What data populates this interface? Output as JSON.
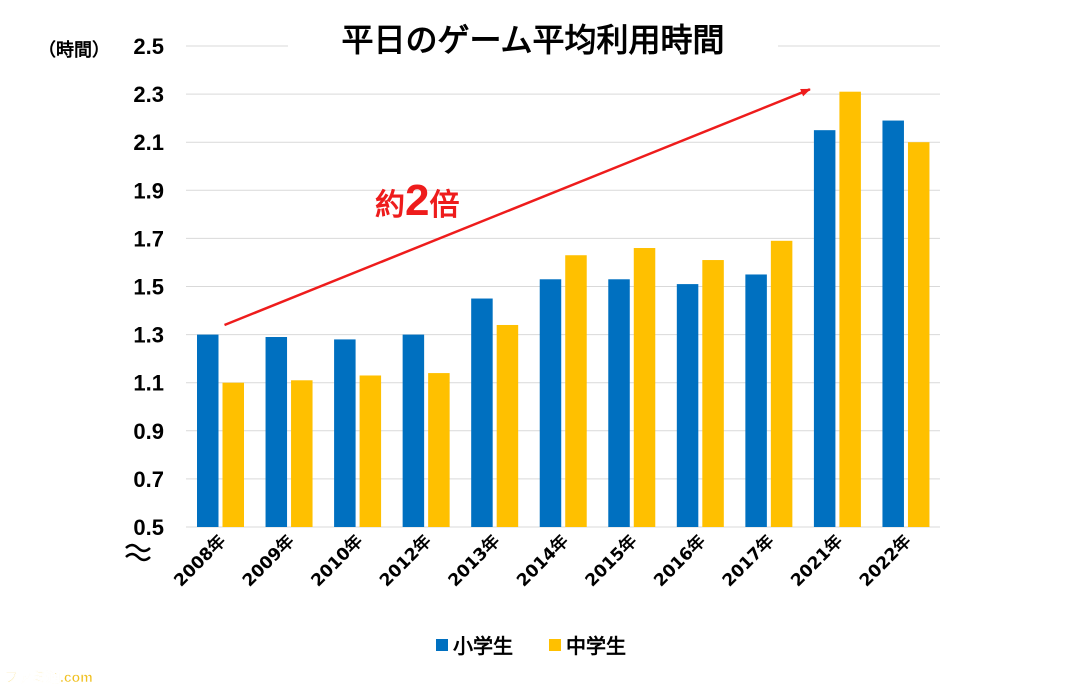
{
  "chart_data": {
    "type": "bar",
    "title": "平日のゲーム平均利用時間",
    "ylabel": "（時間）",
    "ylim": [
      0.5,
      2.5
    ],
    "yticks": [
      "0.5",
      "0.7",
      "0.9",
      "1.1",
      "1.3",
      "1.5",
      "1.7",
      "1.9",
      "2.1",
      "2.3",
      "2.5"
    ],
    "grid": true,
    "axis_break": true,
    "legend_position": "bottom",
    "categories": [
      "2008年",
      "2009年",
      "2010年",
      "2012年",
      "2013年",
      "2014年",
      "2015年",
      "2016年",
      "2017年",
      "2021年",
      "2022年"
    ],
    "series": [
      {
        "name": "小学生",
        "color": "#0070c0",
        "values": [
          1.3,
          1.29,
          1.28,
          1.3,
          1.45,
          1.53,
          1.53,
          1.51,
          1.55,
          2.15,
          2.19
        ]
      },
      {
        "name": "中学生",
        "color": "#ffc000",
        "values": [
          1.1,
          1.11,
          1.13,
          1.14,
          1.34,
          1.63,
          1.66,
          1.61,
          1.69,
          2.31,
          2.1
        ]
      }
    ],
    "annotation": {
      "prefix": "約",
      "number": "2",
      "suffix": "倍",
      "color": "#ee1c1c",
      "arrow_from": {
        "category": "2008年",
        "value": 1.34
      },
      "arrow_to": {
        "category": "2021年",
        "value": 2.32
      }
    }
  },
  "watermark": {
    "text": "ファミ通.com"
  }
}
